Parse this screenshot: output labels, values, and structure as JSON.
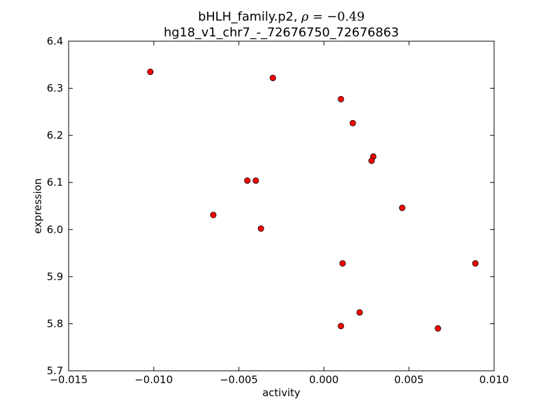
{
  "chart_data": {
    "type": "scatter",
    "title": "bHLH_family.p2, ρ = −0.49",
    "title_line1_prefix": "bHLH_family.p2, ",
    "title_line1_rho_symbol": "ρ",
    "title_line1_rho_value": " = −0.49",
    "subtitle": "hg18_v1_chr7_-_72676750_72676863",
    "xlabel": "activity",
    "ylabel": "expression",
    "xlim": [
      -0.015,
      0.01
    ],
    "ylim": [
      5.7,
      6.4
    ],
    "xticks": [
      -0.015,
      -0.01,
      -0.005,
      0.0,
      0.005,
      0.01
    ],
    "xtick_labels": [
      "−0.015",
      "−0.010",
      "−0.005",
      "0.000",
      "0.005",
      "0.010"
    ],
    "yticks": [
      5.7,
      5.8,
      5.9,
      6.0,
      6.1,
      6.2,
      6.3,
      6.4
    ],
    "ytick_labels": [
      "5.7",
      "5.8",
      "5.9",
      "6.0",
      "6.1",
      "6.2",
      "6.3",
      "6.4"
    ],
    "grid": false,
    "marker_color": "#ff0000",
    "marker_edge_color": "#000000",
    "points": [
      {
        "x": -0.0102,
        "y": 6.335
      },
      {
        "x": -0.003,
        "y": 6.322
      },
      {
        "x": 0.001,
        "y": 6.277
      },
      {
        "x": 0.0017,
        "y": 6.226
      },
      {
        "x": 0.0029,
        "y": 6.155
      },
      {
        "x": 0.0028,
        "y": 6.146
      },
      {
        "x": -0.0045,
        "y": 6.104
      },
      {
        "x": -0.004,
        "y": 6.104
      },
      {
        "x": 0.0046,
        "y": 6.046
      },
      {
        "x": -0.0065,
        "y": 6.031
      },
      {
        "x": -0.0037,
        "y": 6.002
      },
      {
        "x": 0.0011,
        "y": 5.928
      },
      {
        "x": 0.0089,
        "y": 5.928
      },
      {
        "x": 0.0021,
        "y": 5.824
      },
      {
        "x": 0.001,
        "y": 5.795
      },
      {
        "x": 0.0067,
        "y": 5.79
      }
    ]
  }
}
